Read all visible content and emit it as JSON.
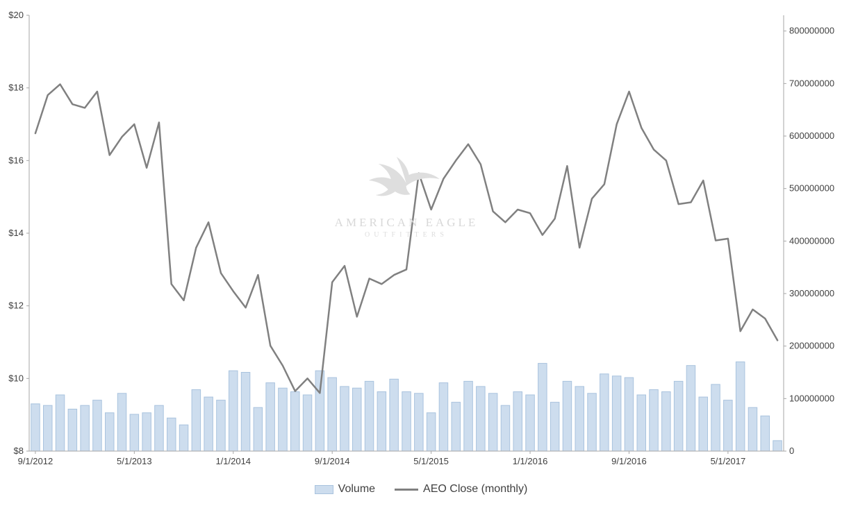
{
  "chart_data": {
    "type": "bar",
    "subtype": "combo-bar-line-dual-axis",
    "title": "",
    "dates": [
      "9/1/2012",
      "10/1/2012",
      "11/1/2012",
      "12/1/2012",
      "1/1/2013",
      "2/1/2013",
      "3/1/2013",
      "4/1/2013",
      "5/1/2013",
      "6/1/2013",
      "7/1/2013",
      "8/1/2013",
      "9/1/2013",
      "10/1/2013",
      "11/1/2013",
      "12/1/2013",
      "1/1/2014",
      "2/1/2014",
      "3/1/2014",
      "4/1/2014",
      "5/1/2014",
      "6/1/2014",
      "7/1/2014",
      "8/1/2014",
      "9/1/2014",
      "10/1/2014",
      "11/1/2014",
      "12/1/2014",
      "1/1/2015",
      "2/1/2015",
      "3/1/2015",
      "4/1/2015",
      "5/1/2015",
      "6/1/2015",
      "7/1/2015",
      "8/1/2015",
      "9/1/2015",
      "10/1/2015",
      "11/1/2015",
      "12/1/2015",
      "1/1/2016",
      "2/1/2016",
      "3/1/2016",
      "4/1/2016",
      "5/1/2016",
      "6/1/2016",
      "7/1/2016",
      "8/1/2016",
      "9/1/2016",
      "10/1/2016",
      "11/1/2016",
      "12/1/2016",
      "1/1/2017",
      "2/1/2017",
      "3/1/2017",
      "4/1/2017",
      "5/1/2017",
      "6/1/2017",
      "7/1/2017",
      "8/1/2017",
      "9/1/2017"
    ],
    "series": [
      {
        "name": "Volume",
        "type": "bar",
        "axis": "right",
        "color": "#cdddee",
        "border": "#a9c3de",
        "values": [
          90000000,
          87000000,
          107000000,
          80000000,
          87000000,
          97000000,
          73000000,
          110000000,
          70000000,
          73000000,
          87000000,
          63000000,
          50000000,
          117000000,
          103000000,
          97000000,
          153000000,
          150000000,
          83000000,
          130000000,
          120000000,
          113000000,
          107000000,
          153000000,
          140000000,
          123000000,
          120000000,
          133000000,
          113000000,
          137000000,
          113000000,
          110000000,
          73000000,
          130000000,
          93000000,
          133000000,
          123000000,
          110000000,
          87000000,
          113000000,
          107000000,
          167000000,
          93000000,
          133000000,
          123000000,
          110000000,
          147000000,
          143000000,
          140000000,
          107000000,
          117000000,
          113000000,
          133000000,
          163000000,
          103000000,
          127000000,
          97000000,
          170000000,
          83000000,
          67000000,
          20000000
        ]
      },
      {
        "name": "AEO Close (monthly)",
        "type": "line",
        "axis": "left",
        "color": "#808080",
        "values": [
          16.75,
          17.8,
          18.1,
          17.55,
          17.45,
          17.9,
          16.15,
          16.65,
          17.0,
          15.8,
          17.05,
          12.6,
          12.15,
          13.6,
          14.3,
          12.9,
          12.4,
          11.95,
          12.85,
          10.9,
          10.35,
          9.65,
          10.0,
          9.6,
          12.65,
          13.1,
          11.7,
          12.75,
          12.6,
          12.85,
          13.0,
          15.65,
          14.65,
          15.5,
          16.0,
          16.45,
          15.9,
          14.6,
          14.3,
          14.65,
          14.55,
          13.95,
          14.4,
          15.85,
          13.6,
          14.95,
          15.35,
          17.0,
          17.9,
          16.9,
          16.3,
          16.0,
          14.8,
          14.85,
          15.45,
          13.8,
          13.85,
          11.3,
          11.9,
          11.65,
          11.05
        ]
      }
    ],
    "left_axis": {
      "min": 8,
      "max": 20,
      "step": 2,
      "tick_labels": [
        "$20",
        "$18",
        "$16",
        "$14",
        "$12",
        "$10",
        "$8"
      ]
    },
    "right_axis": {
      "min": 0,
      "tick_step": 100000000,
      "scale_max": 830000000,
      "tick_labels": [
        "800000000",
        "700000000",
        "600000000",
        "500000000",
        "400000000",
        "300000000",
        "200000000",
        "100000000",
        "0"
      ]
    },
    "x_axis": {
      "tick_step": 8,
      "tick_labels": [
        "9/1/2012",
        "5/1/2013",
        "1/1/2014",
        "9/1/2014",
        "5/1/2015",
        "1/1/2016",
        "9/1/2016",
        "5/1/2017"
      ]
    },
    "legend": [
      "Volume",
      "AEO Close (monthly)"
    ],
    "legend_position": "bottom",
    "grid": "off",
    "watermark": {
      "line1": "AMERICAN EAGLE",
      "line2": "OUTFITTERS"
    }
  }
}
